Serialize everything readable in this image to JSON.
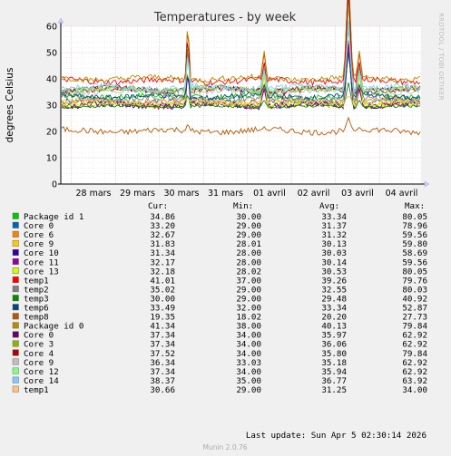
{
  "chart_data": {
    "type": "line",
    "title": "Temperatures - by week",
    "ylabel": "degrees Celsius",
    "ylim": [
      0,
      60
    ],
    "yticks": [
      0,
      10,
      20,
      30,
      40,
      50,
      60
    ],
    "x_tick_labels": [
      "28 mars",
      "29 mars",
      "30 mars",
      "31 mars",
      "01 avril",
      "02 avril",
      "03 avril",
      "04 avril"
    ],
    "grid": true,
    "side_label": "RRDTOOL / TOBI OETIKER",
    "legend_headers": {
      "cur": "Cur:",
      "min": "Min:",
      "avg": "Avg:",
      "max": "Max:"
    },
    "series": [
      {
        "name": "Package id 1",
        "color": "#00cc00",
        "cur": "34.86",
        "min": "30.00",
        "avg": "33.34",
        "max": "80.05"
      },
      {
        "name": "Core 0",
        "color": "#0066b3",
        "cur": "33.20",
        "min": "29.00",
        "avg": "31.37",
        "max": "78.96"
      },
      {
        "name": "Core 6",
        "color": "#ff8000",
        "cur": "32.67",
        "min": "29.00",
        "avg": "31.32",
        "max": "59.56"
      },
      {
        "name": "Core 9",
        "color": "#ffcc00",
        "cur": "31.83",
        "min": "28.01",
        "avg": "30.13",
        "max": "59.80"
      },
      {
        "name": "Core 10",
        "color": "#330099",
        "cur": "31.34",
        "min": "28.00",
        "avg": "30.03",
        "max": "58.69"
      },
      {
        "name": "Core 11",
        "color": "#990099",
        "cur": "32.17",
        "min": "28.00",
        "avg": "30.14",
        "max": "59.56"
      },
      {
        "name": "Core 13",
        "color": "#ccff00",
        "cur": "32.18",
        "min": "28.02",
        "avg": "30.53",
        "max": "80.05"
      },
      {
        "name": "temp1",
        "color": "#ff0000",
        "cur": "41.01",
        "min": "37.00",
        "avg": "39.26",
        "max": "79.76"
      },
      {
        "name": "temp2",
        "color": "#808080",
        "cur": "35.02",
        "min": "29.00",
        "avg": "32.55",
        "max": "80.03"
      },
      {
        "name": "temp3",
        "color": "#008f00",
        "cur": "30.00",
        "min": "29.00",
        "avg": "29.48",
        "max": "40.92"
      },
      {
        "name": "temp6",
        "color": "#00487d",
        "cur": "33.49",
        "min": "32.00",
        "avg": "33.34",
        "max": "52.87"
      },
      {
        "name": "temp8",
        "color": "#b35a00",
        "cur": "19.35",
        "min": "18.02",
        "avg": "20.20",
        "max": "27.73"
      },
      {
        "name": "Package id 0",
        "color": "#b38f00",
        "cur": "41.34",
        "min": "38.00",
        "avg": "40.13",
        "max": "79.84"
      },
      {
        "name": "Core 0",
        "color": "#6b006b",
        "cur": "37.34",
        "min": "34.00",
        "avg": "35.97",
        "max": "62.92"
      },
      {
        "name": "Core 3",
        "color": "#8fb300",
        "cur": "37.34",
        "min": "34.00",
        "avg": "36.06",
        "max": "62.92"
      },
      {
        "name": "Core 4",
        "color": "#b30000",
        "cur": "37.52",
        "min": "34.00",
        "avg": "35.80",
        "max": "79.84"
      },
      {
        "name": "Core 9",
        "color": "#bebebe",
        "cur": "36.34",
        "min": "33.03",
        "avg": "35.18",
        "max": "62.92"
      },
      {
        "name": "Core 12",
        "color": "#80ff80",
        "cur": "37.34",
        "min": "34.00",
        "avg": "35.94",
        "max": "62.92"
      },
      {
        "name": "Core 14",
        "color": "#80c9ff",
        "cur": "38.37",
        "min": "35.00",
        "avg": "36.77",
        "max": "63.92"
      },
      {
        "name": "temp1",
        "color": "#ffc080",
        "cur": "30.66",
        "min": "29.00",
        "avg": "31.25",
        "max": "34.00"
      }
    ],
    "last_update": "Last update: Sun Apr  5 02:30:14 2026",
    "footer": "Munin 2.0.76"
  }
}
